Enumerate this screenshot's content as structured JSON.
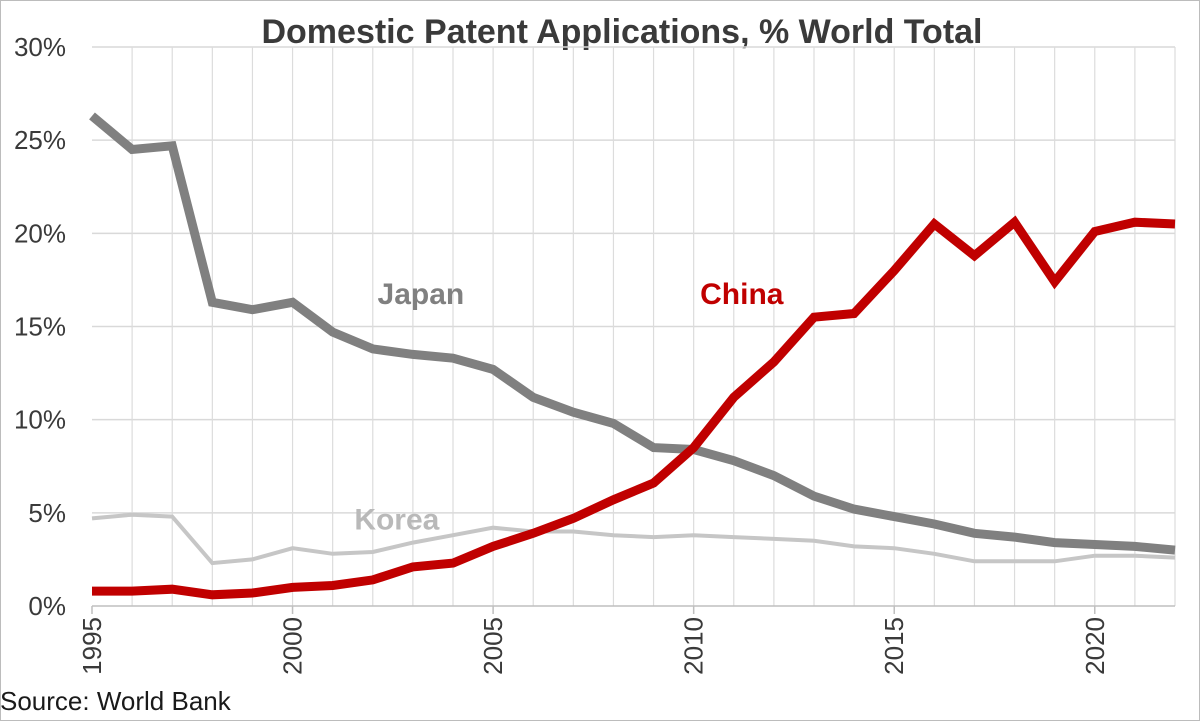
{
  "source_note": "Source: World Bank",
  "chart_data": {
    "type": "line",
    "title": "Domestic Patent Applications, % World Total",
    "xlabel": "",
    "ylabel": "",
    "xlim": [
      1995,
      2022
    ],
    "ylim": [
      0,
      30
    ],
    "x_ticks": [
      1995,
      2000,
      2005,
      2010,
      2015,
      2020
    ],
    "y_ticks": [
      0,
      5,
      10,
      15,
      20,
      25,
      30
    ],
    "y_tick_labels": [
      "0%",
      "5%",
      "10%",
      "15%",
      "20%",
      "25%",
      "30%"
    ],
    "grid": "horizontal",
    "legend": "inline labels",
    "x": [
      1995,
      1996,
      1997,
      1998,
      1999,
      2000,
      2001,
      2002,
      2003,
      2004,
      2005,
      2006,
      2007,
      2008,
      2009,
      2010,
      2011,
      2012,
      2013,
      2014,
      2015,
      2016,
      2017,
      2018,
      2019,
      2020,
      2021,
      2022
    ],
    "series": [
      {
        "name": "Japan",
        "color": "#808080",
        "width": 9,
        "values": [
          26.3,
          24.5,
          24.7,
          16.3,
          15.9,
          16.3,
          14.7,
          13.8,
          13.5,
          13.3,
          12.7,
          11.2,
          10.4,
          9.8,
          8.5,
          8.4,
          7.8,
          7.0,
          5.9,
          5.2,
          4.8,
          4.4,
          3.9,
          3.7,
          3.4,
          3.3,
          3.2,
          3.0
        ]
      },
      {
        "name": "China",
        "color": "#c00000",
        "width": 9,
        "values": [
          0.8,
          0.8,
          0.9,
          0.6,
          0.7,
          1.0,
          1.1,
          1.4,
          2.1,
          2.3,
          3.2,
          3.9,
          4.7,
          5.7,
          6.6,
          8.5,
          11.2,
          13.1,
          15.5,
          15.7,
          18.0,
          20.5,
          18.8,
          20.6,
          17.4,
          20.1,
          20.6,
          20.5
        ]
      },
      {
        "name": "Korea",
        "color": "#c6c6c6",
        "width": 4,
        "values": [
          4.7,
          4.9,
          4.8,
          2.3,
          2.5,
          3.1,
          2.8,
          2.9,
          3.4,
          3.8,
          4.2,
          4.0,
          4.0,
          3.8,
          3.7,
          3.8,
          3.7,
          3.6,
          3.5,
          3.2,
          3.1,
          2.8,
          2.4,
          2.4,
          2.4,
          2.7,
          2.7,
          2.6
        ]
      }
    ]
  }
}
